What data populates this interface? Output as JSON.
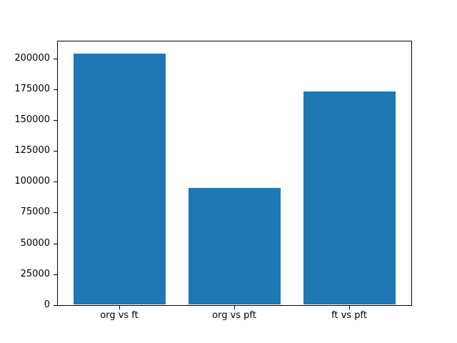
{
  "figure": {
    "background_color": "#ffffff",
    "axis_color": "#000000",
    "text_color": "#000000"
  },
  "chart_data": {
    "type": "bar",
    "categories": [
      "org vs ft",
      "org vs pft",
      "ft vs pft"
    ],
    "values": [
      204000,
      95000,
      173000
    ],
    "title": "",
    "xlabel": "",
    "ylabel": "",
    "yticks": [
      0,
      25000,
      50000,
      75000,
      100000,
      125000,
      150000,
      175000,
      200000
    ],
    "ylim": [
      0,
      214200
    ],
    "xlim": [
      -0.54,
      2.54
    ],
    "bar_width": 0.8,
    "bar_color": "#1f77b4",
    "grid": false,
    "legend": false
  }
}
